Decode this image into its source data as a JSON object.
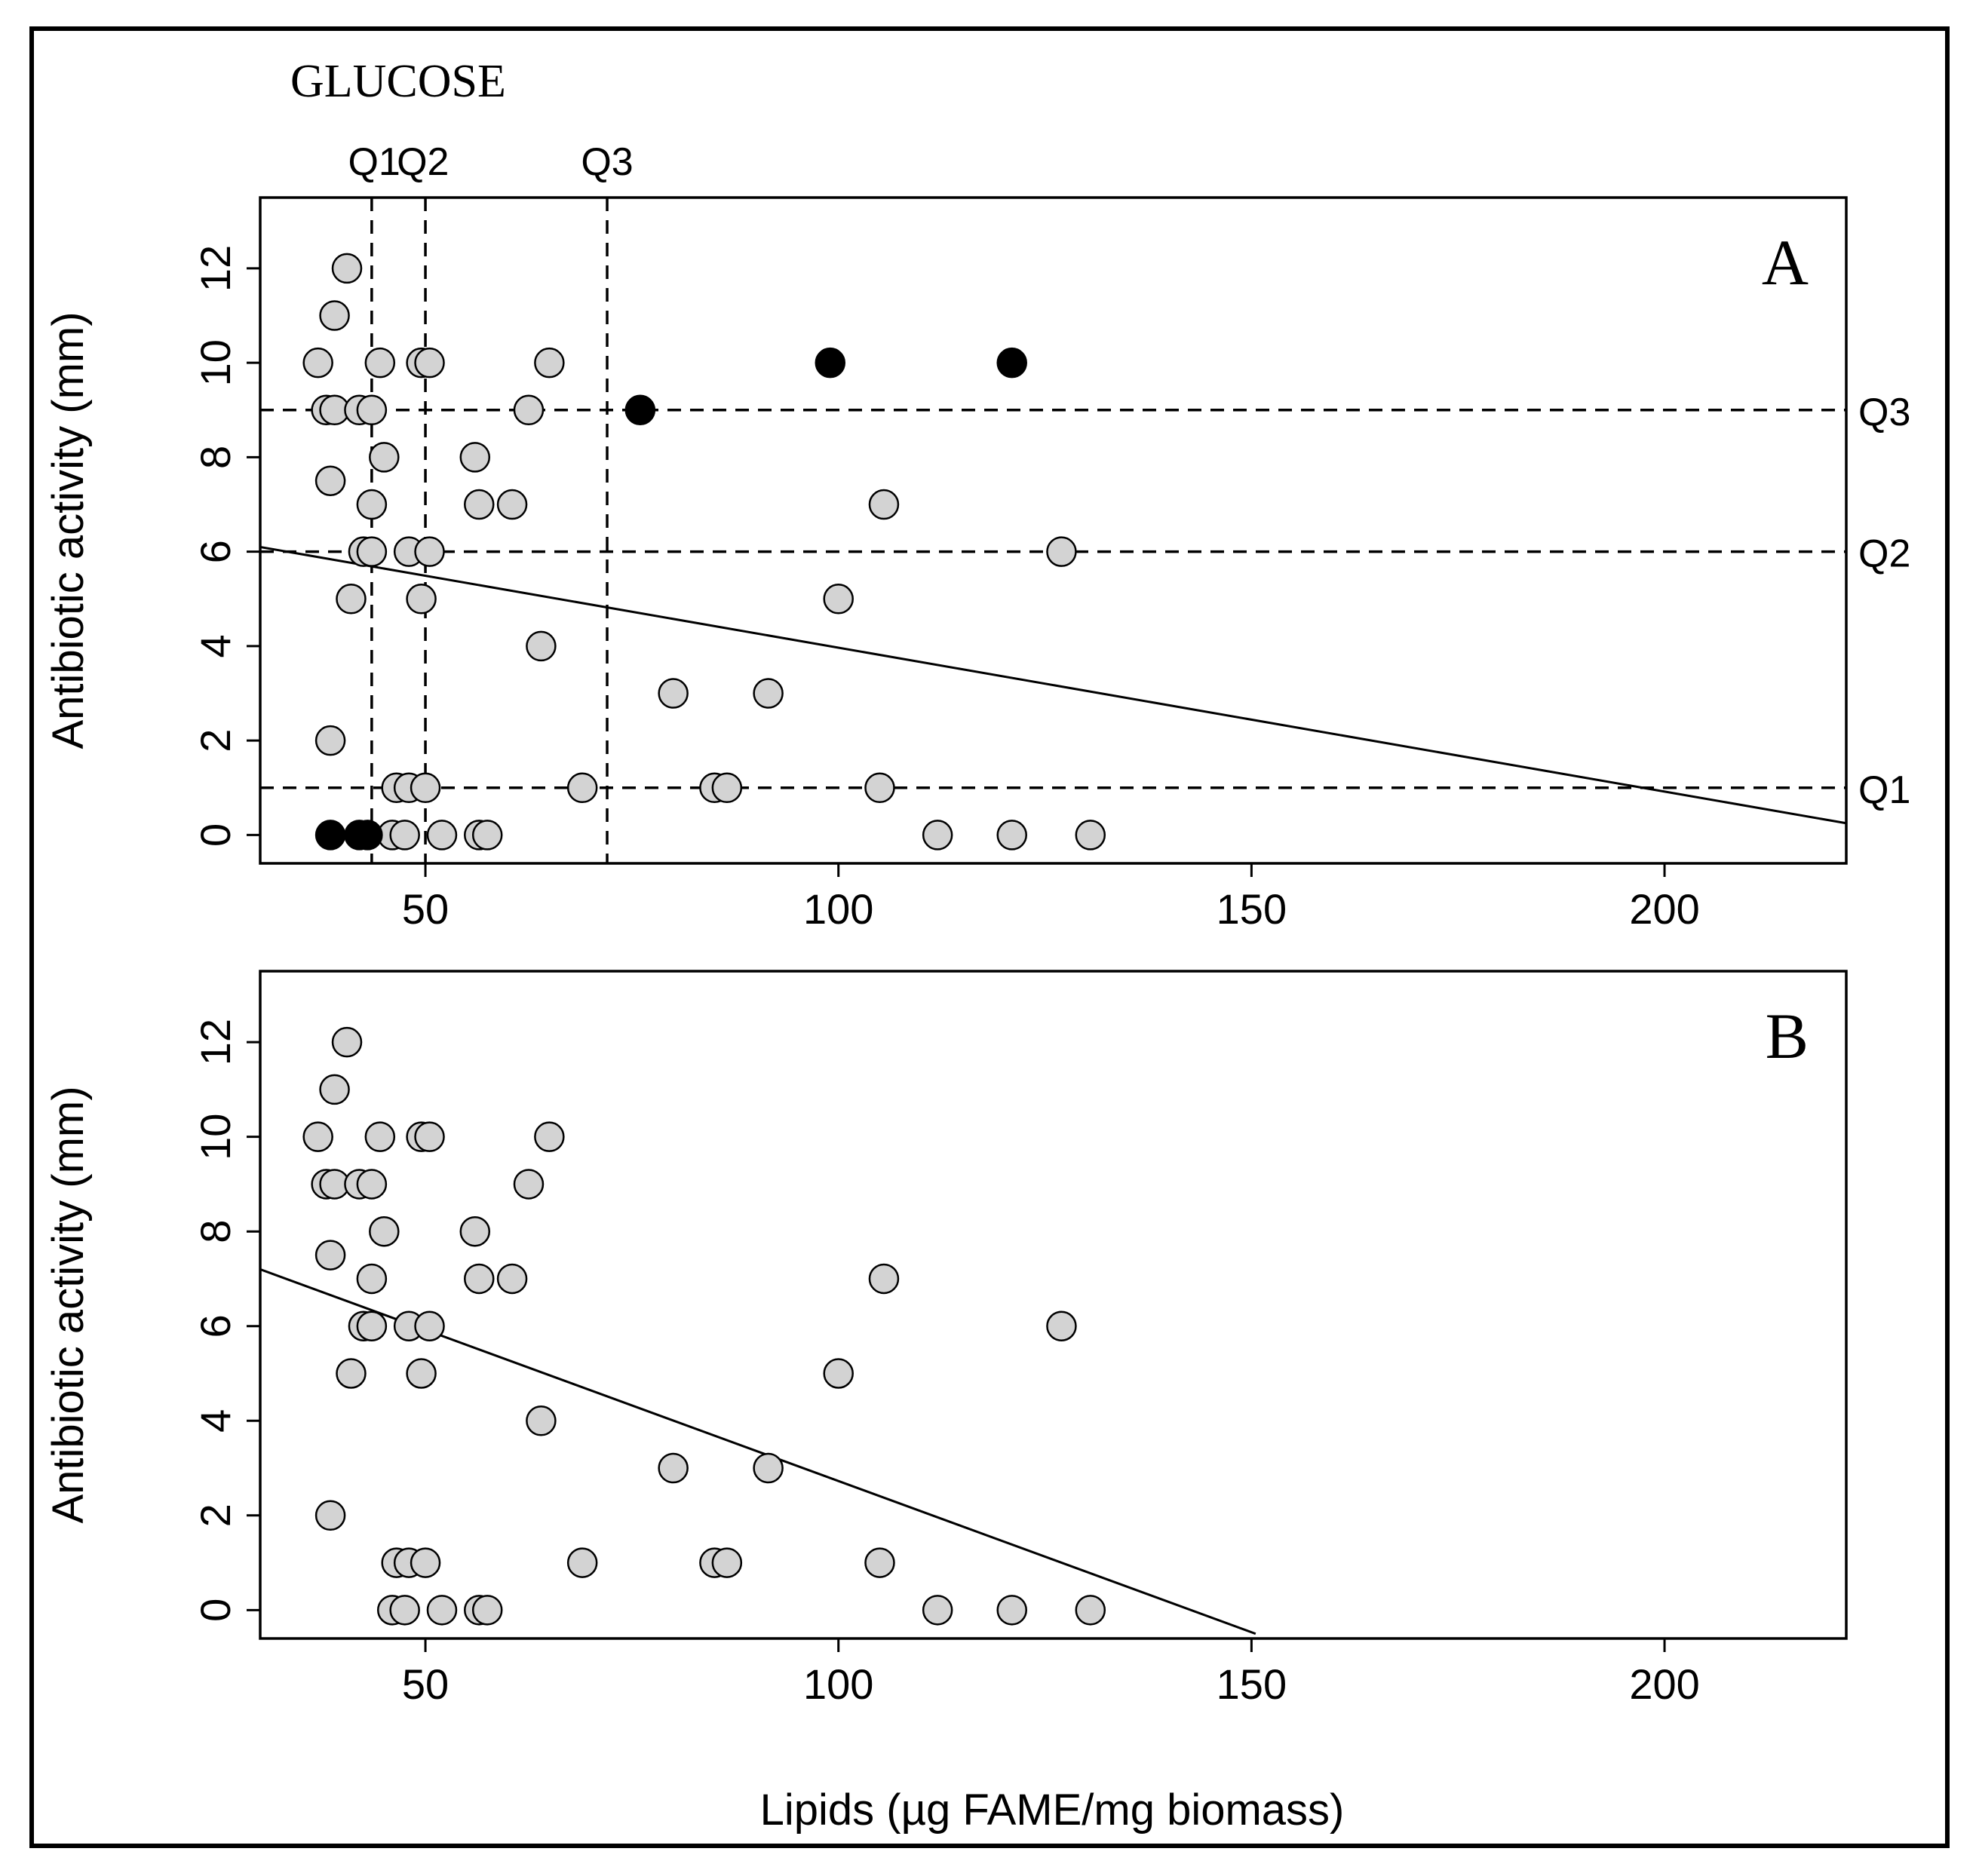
{
  "figure_title": "GLUCOSE",
  "xlabel": "Lipids (µg FAME/mg biomass)",
  "colors": {
    "point_fill": "#d3d3d3",
    "highlight_fill": "#000000",
    "stroke": "#000000",
    "background": "#ffffff"
  },
  "chart_data": [
    {
      "type": "scatter",
      "panel_label": "A",
      "ylabel": "Antibiotic activity (mm)",
      "xlim": [
        30,
        222
      ],
      "ylim": [
        -0.6,
        13.5
      ],
      "x_ticks": [
        50,
        100,
        150,
        200
      ],
      "y_ticks": [
        0,
        2,
        4,
        6,
        8,
        10,
        12
      ],
      "series": [
        {
          "name": "samples",
          "fill": "#d3d3d3",
          "points": [
            [
              40.5,
              12
            ],
            [
              39.0,
              11
            ],
            [
              37.0,
              10
            ],
            [
              44.5,
              10
            ],
            [
              49.5,
              10
            ],
            [
              50.5,
              10
            ],
            [
              65.0,
              10
            ],
            [
              38.0,
              9
            ],
            [
              39.0,
              9
            ],
            [
              42.0,
              9
            ],
            [
              43.5,
              9
            ],
            [
              62.5,
              9
            ],
            [
              45.0,
              8
            ],
            [
              56.0,
              8
            ],
            [
              38.5,
              7.5
            ],
            [
              43.5,
              7
            ],
            [
              56.5,
              7
            ],
            [
              60.5,
              7
            ],
            [
              105.5,
              7
            ],
            [
              42.5,
              6
            ],
            [
              43.5,
              6
            ],
            [
              48.0,
              6
            ],
            [
              50.5,
              6
            ],
            [
              127.0,
              6
            ],
            [
              41.0,
              5
            ],
            [
              49.5,
              5
            ],
            [
              100.0,
              5
            ],
            [
              64.0,
              4
            ],
            [
              80.0,
              3
            ],
            [
              91.5,
              3
            ],
            [
              38.5,
              2
            ],
            [
              46.5,
              1
            ],
            [
              48.0,
              1
            ],
            [
              50.0,
              1
            ],
            [
              69.0,
              1
            ],
            [
              85.0,
              1
            ],
            [
              86.5,
              1
            ],
            [
              105.0,
              1
            ],
            [
              46.0,
              0
            ],
            [
              47.5,
              0
            ],
            [
              52.0,
              0
            ],
            [
              56.5,
              0
            ],
            [
              57.5,
              0
            ],
            [
              112.0,
              0
            ],
            [
              121.0,
              0
            ],
            [
              130.5,
              0
            ]
          ]
        },
        {
          "name": "highlighted",
          "fill": "#000000",
          "points": [
            [
              38.5,
              0
            ],
            [
              42.0,
              0
            ],
            [
              43.0,
              0
            ],
            [
              76.0,
              9
            ],
            [
              99.0,
              10
            ],
            [
              121.0,
              10
            ]
          ]
        }
      ],
      "regression_line": {
        "x": [
          30,
          222
        ],
        "y": [
          6.1,
          0.25
        ]
      },
      "quartile_lines_x": [
        {
          "label": "Q1",
          "value": 43.5
        },
        {
          "label": "Q2",
          "value": 50.0
        },
        {
          "label": "Q3",
          "value": 72.0
        }
      ],
      "quartile_lines_y": [
        {
          "label": "Q1",
          "value": 1
        },
        {
          "label": "Q2",
          "value": 6
        },
        {
          "label": "Q3",
          "value": 9
        }
      ]
    },
    {
      "type": "scatter",
      "panel_label": "B",
      "ylabel": "Antibiotic activity (mm)",
      "xlim": [
        30,
        222
      ],
      "ylim": [
        -0.6,
        13.5
      ],
      "x_ticks": [
        50,
        100,
        150,
        200
      ],
      "y_ticks": [
        0,
        2,
        4,
        6,
        8,
        10,
        12
      ],
      "series": [
        {
          "name": "samples",
          "fill": "#d3d3d3",
          "points": [
            [
              40.5,
              12
            ],
            [
              39.0,
              11
            ],
            [
              37.0,
              10
            ],
            [
              44.5,
              10
            ],
            [
              49.5,
              10
            ],
            [
              50.5,
              10
            ],
            [
              65.0,
              10
            ],
            [
              38.0,
              9
            ],
            [
              39.0,
              9
            ],
            [
              42.0,
              9
            ],
            [
              43.5,
              9
            ],
            [
              62.5,
              9
            ],
            [
              45.0,
              8
            ],
            [
              56.0,
              8
            ],
            [
              38.5,
              7.5
            ],
            [
              43.5,
              7
            ],
            [
              56.5,
              7
            ],
            [
              60.5,
              7
            ],
            [
              105.5,
              7
            ],
            [
              42.5,
              6
            ],
            [
              43.5,
              6
            ],
            [
              48.0,
              6
            ],
            [
              50.5,
              6
            ],
            [
              127.0,
              6
            ],
            [
              41.0,
              5
            ],
            [
              49.5,
              5
            ],
            [
              100.0,
              5
            ],
            [
              64.0,
              4
            ],
            [
              80.0,
              3
            ],
            [
              91.5,
              3
            ],
            [
              38.5,
              2
            ],
            [
              46.5,
              1
            ],
            [
              48.0,
              1
            ],
            [
              50.0,
              1
            ],
            [
              69.0,
              1
            ],
            [
              85.0,
              1
            ],
            [
              86.5,
              1
            ],
            [
              105.0,
              1
            ],
            [
              46.0,
              0
            ],
            [
              47.5,
              0
            ],
            [
              52.0,
              0
            ],
            [
              56.5,
              0
            ],
            [
              57.5,
              0
            ],
            [
              112.0,
              0
            ],
            [
              121.0,
              0
            ],
            [
              130.5,
              0
            ]
          ]
        }
      ],
      "regression_line": {
        "x": [
          30,
          150.5
        ],
        "y": [
          7.2,
          -0.5
        ]
      }
    }
  ]
}
